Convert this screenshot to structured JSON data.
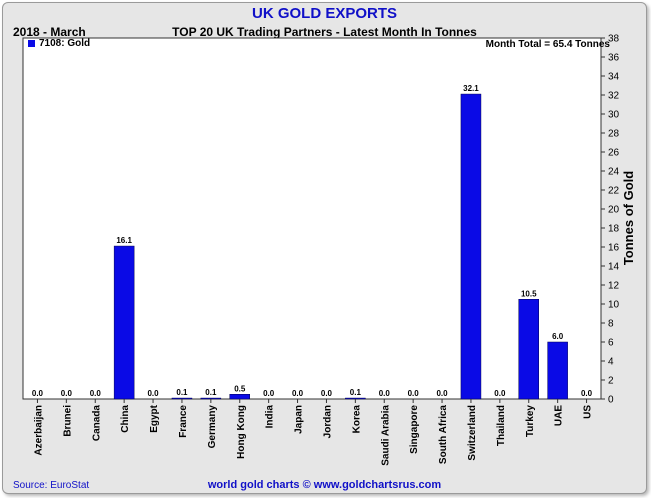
{
  "header": {
    "title": "UK GOLD EXPORTS",
    "period": "2018 - March",
    "subtitle": "TOP 20 UK Trading Partners - Latest Month In Tonnes"
  },
  "footer": {
    "source": "Source: EuroStat",
    "credit": "world gold charts © www.goldchartsrus.com"
  },
  "chart_data": {
    "type": "bar",
    "title": "TOP 20 UK Trading Partners - Latest Month In Tonnes",
    "ylabel": "Tonnes of Gold",
    "ylim": [
      0,
      38
    ],
    "yticks": [
      0,
      2,
      4,
      6,
      8,
      10,
      12,
      14,
      16,
      18,
      20,
      22,
      24,
      26,
      28,
      30,
      32,
      34,
      36,
      38
    ],
    "legend": "7108: Gold",
    "legend_position": "top-left",
    "annotation": "Month Total = 65.4 Tonnes",
    "bar_color": "#0a0ae6",
    "categories": [
      "Azerbaijan",
      "Brunei",
      "Canada",
      "China",
      "Egypt",
      "France",
      "Germany",
      "Hong Kong",
      "India",
      "Japan",
      "Jordan",
      "Korea",
      "Saudi Arabia",
      "Singapore",
      "South Africa",
      "Switzerland",
      "Thailand",
      "Turkey",
      "UAE",
      "US"
    ],
    "values": [
      0.0,
      0.0,
      0.0,
      16.1,
      0.0,
      0.1,
      0.1,
      0.5,
      0.0,
      0.0,
      0.0,
      0.1,
      0.0,
      0.0,
      0.0,
      32.1,
      0.0,
      10.5,
      6.0,
      0.0
    ],
    "value_labels": [
      "0.0",
      "0.0",
      "0.0",
      "16.1",
      "0.0",
      "0.1",
      "0.1",
      "0.5",
      "0.0",
      "0.0",
      "0.0",
      "0.1",
      "0.0",
      "0.0",
      "0.0",
      "32.1",
      "0.0",
      "10.5",
      "6.0",
      "0.0"
    ]
  }
}
